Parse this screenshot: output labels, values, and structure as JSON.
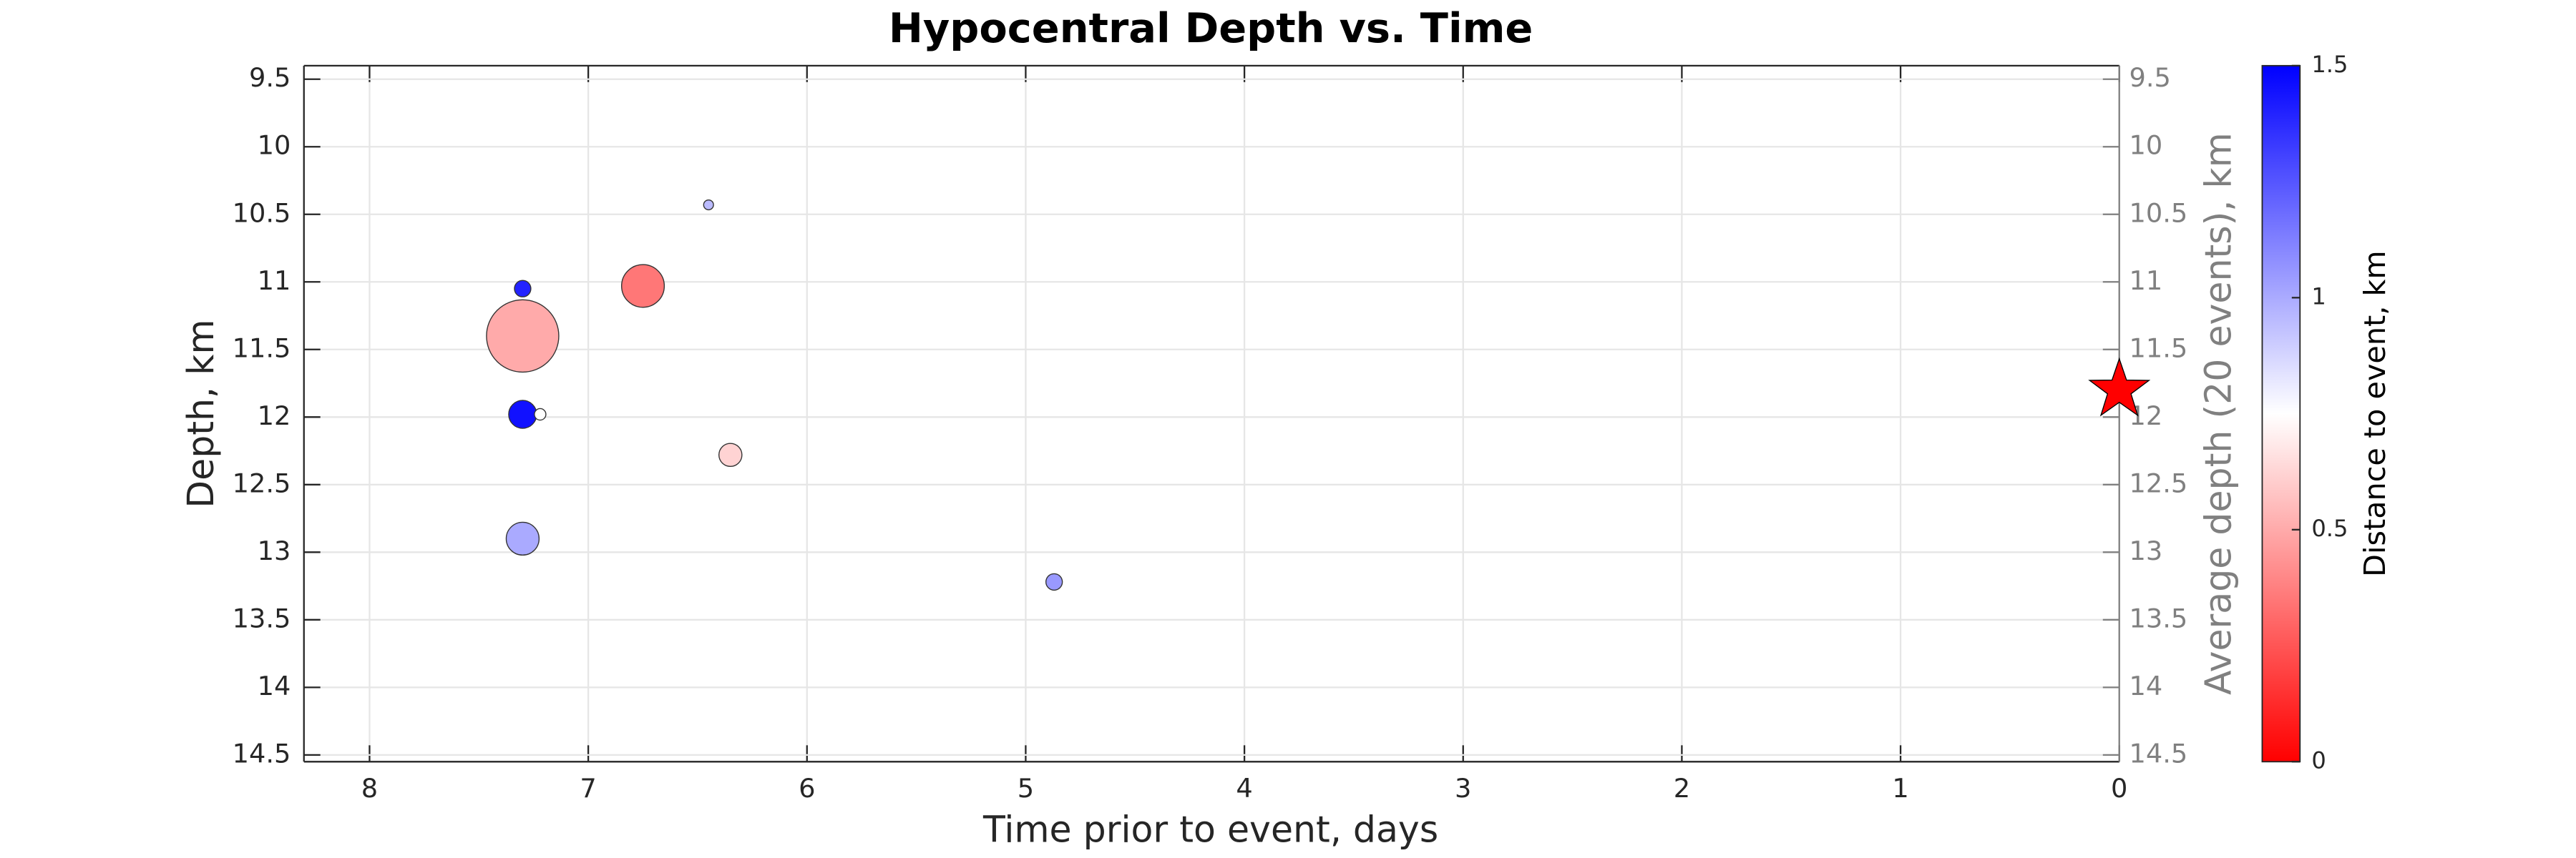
{
  "chart_data": {
    "type": "scatter",
    "title": "Hypocentral Depth vs. Time",
    "x_label": "Time prior to event, days",
    "y_label": "Depth, km",
    "y2_label": "Average depth (20 events), km",
    "colorbar_label": "Distance to event, km",
    "x": [
      7.3,
      7.3,
      7.3,
      6.75,
      6.45,
      7.3,
      7.22,
      6.35,
      7.3,
      4.87
    ],
    "y": [
      11.05,
      11.2,
      11.4,
      11.03,
      10.43,
      11.98,
      11.98,
      12.28,
      12.9,
      13.22
    ],
    "sizes": [
      5,
      5.5,
      22,
      13,
      3,
      8.5,
      3.5,
      7,
      10,
      5
    ],
    "colors": [
      1.4,
      0.15,
      0.5,
      0.35,
      0.95,
      1.45,
      0.75,
      0.62,
      1.0,
      1.05
    ],
    "event": {
      "x": 0,
      "y": 11.8,
      "color": "#ff0000"
    },
    "xlim": [
      8.3,
      0
    ],
    "xticks": [
      8,
      7,
      6,
      5,
      4,
      3,
      2,
      1,
      0
    ],
    "ylim": [
      9.4,
      14.55
    ],
    "yticks": [
      9.5,
      10,
      10.5,
      11,
      11.5,
      12,
      12.5,
      13,
      13.5,
      14,
      14.5
    ],
    "y2lim": [
      9.4,
      14.55
    ],
    "y2ticks": [
      9.5,
      10,
      10.5,
      11,
      11.5,
      12,
      12.5,
      13,
      13.5,
      14,
      14.5
    ],
    "clim": [
      0,
      1.5
    ],
    "cticks": [
      0,
      0.5,
      1,
      1.5
    ],
    "y_reversed": true,
    "grid": true
  }
}
